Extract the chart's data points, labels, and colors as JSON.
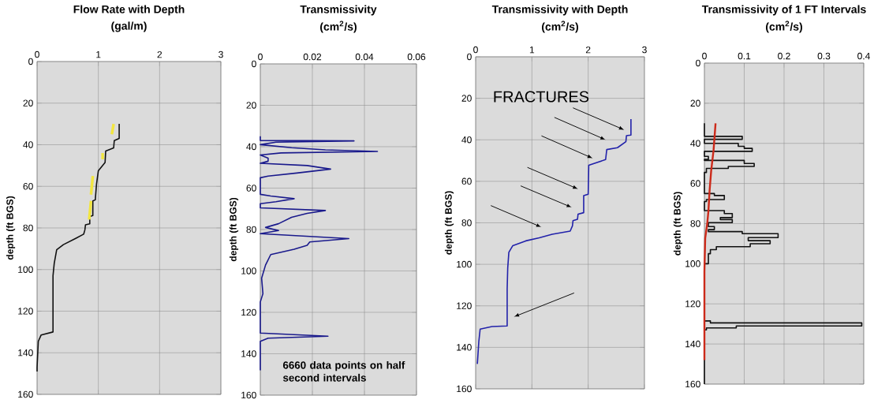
{
  "chart_data": [
    {
      "type": "line",
      "title": "Flow Rate with Depth",
      "xlabel": "(gal/m)",
      "ylabel": "depth (ft BGS)",
      "xlim": [
        0,
        3
      ],
      "xticks": [
        0,
        1,
        2,
        3
      ],
      "ylim": [
        160,
        0
      ],
      "yticks": [
        0,
        20,
        40,
        60,
        80,
        100,
        120,
        140,
        160
      ],
      "grid": true,
      "series": [
        {
          "color": "#111111",
          "x": [
            1.34,
            1.34,
            1.26,
            1.25,
            1.12,
            1.11,
            1.0,
            0.97,
            0.95,
            0.91,
            0.91,
            0.86,
            0.86,
            0.79,
            0.78,
            0.76,
            0.63,
            0.43,
            0.32,
            0.28,
            0.26,
            0.26,
            0.065,
            0.02,
            0,
            0
          ],
          "values": [
            30,
            37,
            38,
            41.5,
            43,
            48.5,
            52.5,
            59,
            66.5,
            67,
            74,
            74.5,
            78,
            78.5,
            81,
            83,
            85,
            88,
            90.5,
            97,
            103,
            130,
            131.5,
            134.5,
            147,
            149
          ]
        },
        {
          "color": "#f2e640",
          "x": [
            1.25,
            1.22
          ],
          "values": [
            30,
            35
          ]
        },
        {
          "color": "#f2e640",
          "x": [
            1.07,
            1.07
          ],
          "values": [
            44,
            47
          ]
        },
        {
          "color": "#f2e640",
          "x": [
            0.91,
            0.88
          ],
          "values": [
            55,
            64
          ]
        },
        {
          "color": "#f2e640",
          "x": [
            0.88,
            0.85
          ],
          "values": [
            67,
            76
          ]
        }
      ]
    },
    {
      "type": "line",
      "title": "Transmissivity",
      "xlabel": "(cm$^{2}$/s)",
      "ylabel": "depth (ft BGS)",
      "xlim": [
        0,
        0.06
      ],
      "xticks": [
        0,
        0.02,
        0.04,
        0.06
      ],
      "ylim": [
        160,
        0
      ],
      "yticks": [
        0,
        20,
        40,
        60,
        80,
        100,
        120,
        140,
        160
      ],
      "grid": true,
      "annotations": [
        "6660 data points on half second intervals"
      ],
      "series": [
        {
          "color": "#1a1a8c",
          "x": [
            0,
            0,
            0.036,
            0.006,
            0,
            0.012,
            0.025,
            0.045,
            0.008,
            0,
            0.003,
            0.003,
            0,
            0.018,
            0.027,
            0.014,
            0.003,
            0,
            0,
            0.004,
            0.013,
            0.006,
            0,
            0,
            0.025,
            0.018,
            0.012,
            0.007,
            0.002,
            0.007,
            0,
            0.034,
            0.019,
            0.018,
            0.013,
            0.004,
            0.002,
            0.0005,
            0.001,
            0,
            0,
            0.026,
            0.003,
            0,
            0
          ],
          "values": [
            35,
            37,
            37.2,
            37.8,
            39,
            40.5,
            41.5,
            42.3,
            43,
            44,
            45.5,
            47,
            48,
            49.1,
            50.8,
            52.7,
            54.2,
            55,
            63,
            63.8,
            65.1,
            66.6,
            67.5,
            69.5,
            70.8,
            72.2,
            74.1,
            77.2,
            79,
            80.5,
            82,
            84.4,
            86,
            87.6,
            89.5,
            92.1,
            97.2,
            103.5,
            111,
            115,
            130,
            131.5,
            132.5,
            134,
            148
          ]
        }
      ]
    },
    {
      "type": "line",
      "title": "Transmissivity with Depth",
      "xlabel": "(cm$^{2}$/s)",
      "ylabel": "depth (ft BGS)",
      "xlim": [
        0,
        3
      ],
      "xticks": [
        0,
        1,
        2,
        3
      ],
      "ylim": [
        160,
        0
      ],
      "yticks": [
        0,
        20,
        40,
        60,
        80,
        100,
        120,
        140,
        160
      ],
      "grid": true,
      "annotations": [
        "FRACTURES"
      ],
      "series": [
        {
          "color": "#2222aa",
          "x": [
            2.76,
            2.76,
            2.68,
            2.67,
            2.52,
            2.33,
            2.31,
            2.01,
            2.0,
            1.92,
            1.92,
            1.82,
            1.81,
            1.73,
            1.72,
            1.68,
            1.36,
            1.13,
            0.89,
            0.66,
            0.59,
            0.57,
            0.56,
            0.56,
            0.29,
            0.08,
            0.056,
            0.03
          ],
          "values": [
            30,
            37.7,
            38,
            40.9,
            43.8,
            44.7,
            49.5,
            52.3,
            66.2,
            66.9,
            75.1,
            75.8,
            78.3,
            79,
            81.5,
            84,
            85.5,
            87.2,
            88.7,
            91,
            94.2,
            101.8,
            112,
            129.7,
            130,
            131.2,
            137.3,
            148
          ]
        }
      ]
    },
    {
      "type": "line",
      "title": "Transmissivity of 1 FT Intervals",
      "xlabel": "(cm$^{2}$/s)",
      "ylabel": "depth (ft BGS)",
      "xlim": [
        0,
        0.4
      ],
      "xticks": [
        0,
        0.1,
        0.2,
        0.3,
        0.4
      ],
      "ylim": [
        160,
        0
      ],
      "yticks": [
        0,
        20,
        40,
        60,
        80,
        100,
        120,
        140,
        160
      ],
      "grid": true,
      "series": [
        {
          "color": "#111111",
          "x": [
            0,
            0,
            0.095,
            0.095,
            0,
            0,
            0.085,
            0.085,
            0.1,
            0.1,
            0.12,
            0.12,
            0,
            0,
            0.01,
            0.01,
            0,
            0,
            0.1,
            0.1,
            0.125,
            0.125,
            0.06,
            0.06,
            0.005,
            0.005,
            0,
            0,
            0.025,
            0.025,
            0.05,
            0.05,
            0.005,
            0.005,
            0,
            0,
            0.05,
            0.05,
            0.07,
            0.07,
            0.04,
            0.04,
            0.07,
            0.07,
            0.01,
            0.01,
            0.025,
            0.025,
            0.01,
            0.01,
            0.095,
            0.095,
            0.185,
            0.185,
            0.11,
            0.11,
            0.165,
            0.165,
            0.115,
            0.115,
            0.03,
            0.03,
            0.015,
            0.015,
            0.01,
            0.01,
            0,
            0,
            0.015,
            0.015,
            0.395,
            0.395,
            0.08,
            0.08,
            0.005,
            0.005,
            0,
            0
          ],
          "values": [
            30,
            36.5,
            36.5,
            38,
            38,
            40,
            40,
            41.5,
            41.5,
            42.5,
            42.5,
            44,
            44,
            46.5,
            46.5,
            48,
            48,
            48.5,
            48.5,
            50,
            50,
            51.5,
            51.5,
            52.5,
            52.5,
            54.5,
            54.5,
            65,
            65,
            66,
            66,
            68,
            68,
            69,
            69,
            73.5,
            73.5,
            75,
            75,
            77,
            77,
            78,
            78,
            79.5,
            79.5,
            81.5,
            81.5,
            83,
            83,
            84,
            84,
            85,
            85,
            87,
            87,
            88.5,
            88.5,
            90,
            90,
            91.5,
            91.5,
            93,
            93,
            95,
            95,
            100,
            100,
            128.5,
            128.5,
            129.5,
            129.5,
            131,
            131,
            132,
            132,
            133,
            133,
            160
          ]
        },
        {
          "color": "#cc2a1a",
          "x": [
            0.028,
            0.023,
            0.017,
            0.013,
            0.01,
            0.007,
            0.002,
            0,
            0
          ],
          "values": [
            30,
            43.4,
            53.6,
            63.7,
            73.9,
            80.2,
            87.2,
            104,
            148
          ]
        }
      ]
    }
  ]
}
